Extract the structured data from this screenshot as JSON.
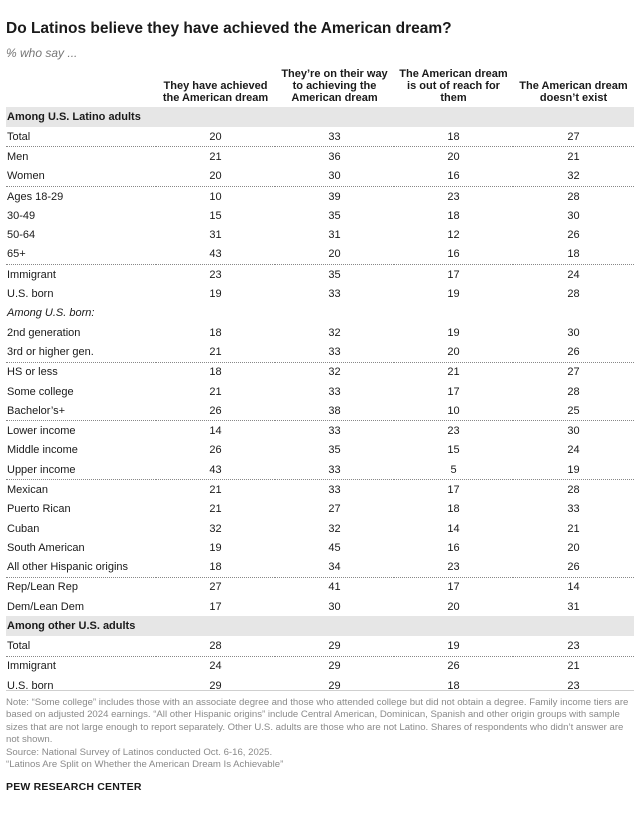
{
  "title": "Do Latinos believe they have achieved the American dream?",
  "subtitle": "% who say ...",
  "columns": [
    "They have achieved the American dream",
    "They’re on their way to achieving the American dream",
    "The American dream is out of reach for them",
    "The American dream doesn’t exist"
  ],
  "sections": [
    {
      "heading": "Among U.S. Latino adults",
      "rows": [
        {
          "label": "Total",
          "values": [
            "20",
            "33",
            "18",
            "27"
          ],
          "group_start": false
        },
        {
          "label": "Men",
          "values": [
            "21",
            "36",
            "20",
            "21"
          ],
          "group_start": true
        },
        {
          "label": "Women",
          "values": [
            "20",
            "30",
            "16",
            "32"
          ],
          "group_start": false
        },
        {
          "label": "Ages 18-29",
          "values": [
            "10",
            "39",
            "23",
            "28"
          ],
          "group_start": true
        },
        {
          "label": "30-49",
          "values": [
            "15",
            "35",
            "18",
            "30"
          ],
          "group_start": false
        },
        {
          "label": "50-64",
          "values": [
            "31",
            "31",
            "12",
            "26"
          ],
          "group_start": false
        },
        {
          "label": "65+",
          "values": [
            "43",
            "20",
            "16",
            "18"
          ],
          "group_start": false
        },
        {
          "label": "Immigrant",
          "values": [
            "23",
            "35",
            "17",
            "24"
          ],
          "group_start": true
        },
        {
          "label": "U.S. born",
          "values": [
            "19",
            "33",
            "19",
            "28"
          ],
          "group_start": false
        },
        {
          "label": "Among U.S. born:",
          "values": [
            "",
            "",
            "",
            ""
          ],
          "group_start": false,
          "subhead": true
        },
        {
          "label": "2nd generation",
          "values": [
            "18",
            "32",
            "19",
            "30"
          ],
          "group_start": false
        },
        {
          "label": "3rd or higher gen.",
          "values": [
            "21",
            "33",
            "20",
            "26"
          ],
          "group_start": false
        },
        {
          "label": "HS or less",
          "values": [
            "18",
            "32",
            "21",
            "27"
          ],
          "group_start": true
        },
        {
          "label": "Some college",
          "values": [
            "21",
            "33",
            "17",
            "28"
          ],
          "group_start": false
        },
        {
          "label": "Bachelor’s+",
          "values": [
            "26",
            "38",
            "10",
            "25"
          ],
          "group_start": false
        },
        {
          "label": "Lower income",
          "values": [
            "14",
            "33",
            "23",
            "30"
          ],
          "group_start": true
        },
        {
          "label": "Middle income",
          "values": [
            "26",
            "35",
            "15",
            "24"
          ],
          "group_start": false
        },
        {
          "label": "Upper income",
          "values": [
            "43",
            "33",
            "5",
            "19"
          ],
          "group_start": false
        },
        {
          "label": "Mexican",
          "values": [
            "21",
            "33",
            "17",
            "28"
          ],
          "group_start": true
        },
        {
          "label": "Puerto Rican",
          "values": [
            "21",
            "27",
            "18",
            "33"
          ],
          "group_start": false
        },
        {
          "label": "Cuban",
          "values": [
            "32",
            "32",
            "14",
            "21"
          ],
          "group_start": false
        },
        {
          "label": "South American",
          "values": [
            "19",
            "45",
            "16",
            "20"
          ],
          "group_start": false
        },
        {
          "label": "All other Hispanic origins",
          "values": [
            "18",
            "34",
            "23",
            "26"
          ],
          "group_start": false
        },
        {
          "label": "Rep/Lean Rep",
          "values": [
            "27",
            "41",
            "17",
            "14"
          ],
          "group_start": true
        },
        {
          "label": "Dem/Lean Dem",
          "values": [
            "17",
            "30",
            "20",
            "31"
          ],
          "group_start": false
        }
      ]
    },
    {
      "heading": "Among other U.S. adults",
      "rows": [
        {
          "label": "Total",
          "values": [
            "28",
            "29",
            "19",
            "23"
          ],
          "group_start": false
        },
        {
          "label": "Immigrant",
          "values": [
            "24",
            "29",
            "26",
            "21"
          ],
          "group_start": true
        },
        {
          "label": "U.S. born",
          "values": [
            "29",
            "29",
            "18",
            "23"
          ],
          "group_start": false
        }
      ]
    }
  ],
  "footer": {
    "note": "Note: “Some college” includes those with an associate degree and those who attended college but did not obtain a degree. Family income tiers are based on adjusted 2024 earnings. “All other Hispanic origins” include Central American, Dominican, Spanish and other origin groups with sample sizes that are not large enough to report separately. Other U.S. adults are those who are not Latino. Shares of respondents who didn’t answer are not shown.",
    "source": "Source: National Survey of Latinos conducted Oct. 6-16, 2025.",
    "report": "“Latinos Are Split on Whether the American Dream Is Achievable”"
  },
  "brand": "PEW RESEARCH CENTER"
}
